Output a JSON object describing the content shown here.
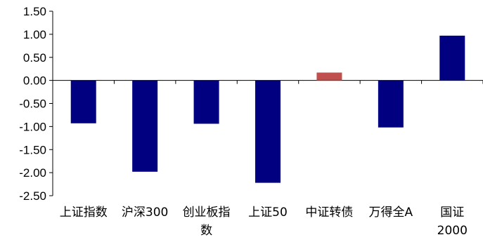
{
  "chart_data": {
    "type": "bar",
    "title": "",
    "xlabel": "",
    "ylabel": "",
    "ylim": [
      -2.5,
      1.5
    ],
    "yticks": [
      1.5,
      1.0,
      0.5,
      0.0,
      -0.5,
      -1.0,
      -1.5,
      -2.0,
      -2.5
    ],
    "ytick_labels": [
      "1.50",
      "1.00",
      "0.50",
      "0.00",
      "-0.50",
      "-1.00",
      "-1.50",
      "-2.00",
      "-2.50"
    ],
    "categories": [
      "上证指数",
      "沪深300",
      "创业板指数",
      "上证50",
      "中证转债",
      "万得全A",
      "国证2000"
    ],
    "category_label_lines": [
      [
        "上证指数"
      ],
      [
        "沪深300"
      ],
      [
        "创业板指",
        "数"
      ],
      [
        "上证50"
      ],
      [
        "中证转债"
      ],
      [
        "万得全A"
      ],
      [
        "国证",
        "2000"
      ]
    ],
    "values": [
      -0.93,
      -1.98,
      -0.94,
      -2.22,
      0.17,
      -1.02,
      0.97
    ],
    "colors": [
      "#000080",
      "#000080",
      "#000080",
      "#000080",
      "#C0504D",
      "#000080",
      "#000080"
    ],
    "grid": false,
    "legend": "none"
  }
}
